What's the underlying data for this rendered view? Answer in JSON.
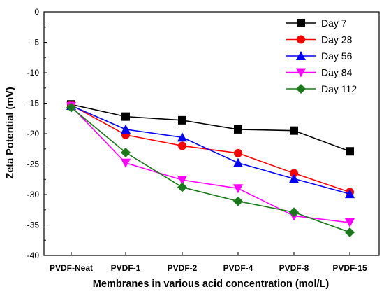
{
  "chart_data": {
    "type": "line",
    "title": "",
    "xlabel": "Membranes in various acid concentration (mol/L)",
    "ylabel": "Zeta Potential (mV)",
    "categories": [
      "PVDF-Neat",
      "PVDF-1",
      "PVDF-2",
      "PVDF-4",
      "PVDF-8",
      "PVDF-15"
    ],
    "ylim": [
      -40,
      0
    ],
    "yticks": [
      0,
      -5,
      -10,
      -15,
      -20,
      -25,
      -30,
      -35,
      -40
    ],
    "ytick_labels": [
      "0",
      "-5",
      "-10",
      "-15",
      "-20",
      "-25",
      "-30",
      "-35",
      "-40"
    ],
    "grid": false,
    "legend_position": "top-right",
    "series": [
      {
        "name": "Day 7",
        "color": "#000000",
        "marker": "square",
        "values": [
          -15.2,
          -17.2,
          -17.8,
          -19.3,
          -19.5,
          -22.9
        ]
      },
      {
        "name": "Day 28",
        "color": "#ff0000",
        "marker": "circle",
        "values": [
          -15.3,
          -20.2,
          -22.0,
          -23.2,
          -26.5,
          -29.6
        ]
      },
      {
        "name": "Day 56",
        "color": "#0000ff",
        "marker": "triangle-up",
        "values": [
          -15.4,
          -19.3,
          -20.6,
          -24.8,
          -27.4,
          -29.9
        ]
      },
      {
        "name": "Day 84",
        "color": "#ff00ff",
        "marker": "triangle-down",
        "values": [
          -15.5,
          -24.8,
          -27.6,
          -29.0,
          -33.5,
          -34.6
        ]
      },
      {
        "name": "Day 112",
        "color": "#1a7a1a",
        "marker": "diamond",
        "values": [
          -15.7,
          -23.1,
          -28.8,
          -31.1,
          -32.9,
          -36.2
        ]
      }
    ]
  }
}
